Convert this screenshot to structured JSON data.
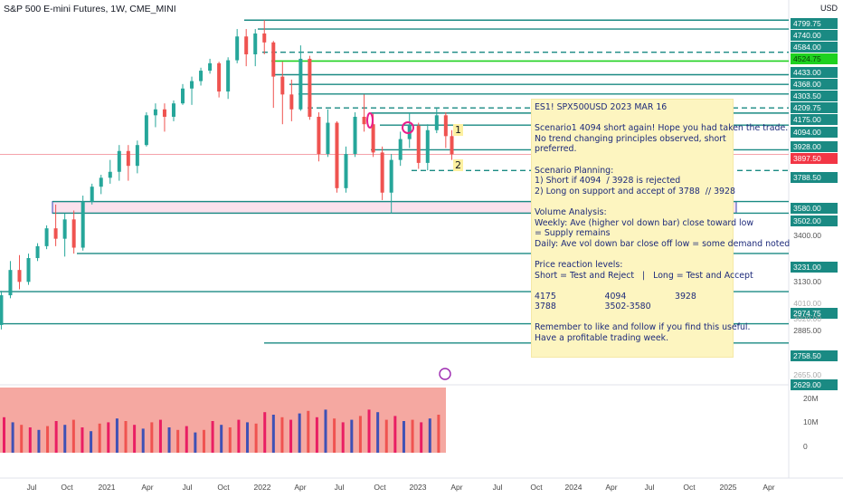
{
  "header": {
    "title": "S&P 500 E-mini Futures, 1W, CME_MINI"
  },
  "price_axis": {
    "currency": "USD",
    "ticks": [
      "3400.00",
      "3130.00",
      "2885.00"
    ],
    "partial_ticks": [
      "4010.00",
      "3020.00",
      "2655.00"
    ]
  },
  "price_tags": [
    {
      "label": "4799.75",
      "style": "teal"
    },
    {
      "label": "4740.00",
      "style": "teal"
    },
    {
      "label": "4584.00",
      "style": "teal"
    },
    {
      "label": "4524.75",
      "style": "green"
    },
    {
      "label": "4433.00",
      "style": "teal"
    },
    {
      "label": "4368.00",
      "style": "teal"
    },
    {
      "label": "4303.50",
      "style": "teal"
    },
    {
      "label": "4209.75",
      "style": "teal"
    },
    {
      "label": "4175.00",
      "style": "teal"
    },
    {
      "label": "4094.00",
      "style": "teal"
    },
    {
      "label": "3928.00",
      "style": "teal"
    },
    {
      "label": "3897.50",
      "style": "red"
    },
    {
      "label": "3788.50",
      "style": "teal"
    },
    {
      "label": "3580.00",
      "style": "teal"
    },
    {
      "label": "3502.00",
      "style": "teal"
    },
    {
      "label": "3231.00",
      "style": "teal"
    },
    {
      "label": "2974.75",
      "style": "teal"
    },
    {
      "label": "2758.50",
      "style": "teal"
    },
    {
      "label": "2629.00",
      "style": "teal"
    }
  ],
  "volume_axis": {
    "ticks": [
      "20M",
      "10M",
      "0"
    ]
  },
  "time_axis": [
    "Jul",
    "Oct",
    "2021",
    "Apr",
    "Jul",
    "Oct",
    "2022",
    "Apr",
    "Jul",
    "Oct",
    "2023",
    "Apr",
    "Jul",
    "Oct",
    "2024",
    "Apr",
    "Jul",
    "Oct",
    "2025",
    "Apr"
  ],
  "scenario_flags": [
    "1",
    "2"
  ],
  "note": {
    "lines": [
      "ES1! SPX500USD 2023 MAR 16",
      "",
      "Scenario1 4094 short again! Hope you had taken the trade.",
      "No trend changing principles observed, short",
      "preferred.",
      "",
      "Scenario Planning:",
      "1) Short if 4094  / 3928 is rejected",
      "2) Long on support and accept of 3788  // 3928",
      "",
      "Volume Analysis:",
      "Weekly: Ave (higher vol down bar) close toward low",
      "= Supply remains",
      "Daily: Ave vol down bar close off low = some demand noted",
      "",
      "Price reaction levels:",
      "Short = Test and Reject   |   Long = Test and Accept",
      "",
      "4175                  4094                  3928",
      "3788                  3502-3580",
      "",
      "Remember to like and follow if you find this useful.",
      "Have a profitable trading week."
    ]
  },
  "colors": {
    "teal": "#1a8a83",
    "green": "#1fd11f",
    "red": "#f23645",
    "up": "#26a69a",
    "down": "#ef5350",
    "note_text": "#1d2a7a"
  },
  "chart_data": {
    "type": "candlestick",
    "title": "S&P 500 E-mini Futures, 1W, CME_MINI",
    "ylim": [
      2500,
      4850
    ],
    "x_range": [
      "2020-05",
      "2025-05"
    ],
    "candles": [
      {
        "date": "2020-05-04",
        "o": 2750,
        "h": 2980,
        "l": 2720,
        "c": 2950
      },
      {
        "date": "2020-05-25",
        "o": 2950,
        "h": 3180,
        "l": 2930,
        "c": 3120
      },
      {
        "date": "2020-06-15",
        "o": 3120,
        "h": 3220,
        "l": 2990,
        "c": 3040
      },
      {
        "date": "2020-07-06",
        "o": 3040,
        "h": 3230,
        "l": 3020,
        "c": 3200
      },
      {
        "date": "2020-07-27",
        "o": 3200,
        "h": 3300,
        "l": 3180,
        "c": 3280
      },
      {
        "date": "2020-08-17",
        "o": 3280,
        "h": 3420,
        "l": 3260,
        "c": 3400
      },
      {
        "date": "2020-09-07",
        "o": 3400,
        "h": 3560,
        "l": 3280,
        "c": 3330
      },
      {
        "date": "2020-09-28",
        "o": 3330,
        "h": 3500,
        "l": 3210,
        "c": 3460
      },
      {
        "date": "2020-10-19",
        "o": 3460,
        "h": 3520,
        "l": 3230,
        "c": 3270
      },
      {
        "date": "2020-11-09",
        "o": 3270,
        "h": 3620,
        "l": 3250,
        "c": 3580
      },
      {
        "date": "2020-11-30",
        "o": 3580,
        "h": 3700,
        "l": 3560,
        "c": 3680
      },
      {
        "date": "2020-12-21",
        "o": 3680,
        "h": 3760,
        "l": 3630,
        "c": 3740
      },
      {
        "date": "2021-01-11",
        "o": 3740,
        "h": 3860,
        "l": 3700,
        "c": 3780
      },
      {
        "date": "2021-02-01",
        "o": 3780,
        "h": 3960,
        "l": 3720,
        "c": 3920
      },
      {
        "date": "2021-02-22",
        "o": 3920,
        "h": 3960,
        "l": 3720,
        "c": 3820
      },
      {
        "date": "2021-03-15",
        "o": 3820,
        "h": 3990,
        "l": 3770,
        "c": 3960
      },
      {
        "date": "2021-04-05",
        "o": 3960,
        "h": 4180,
        "l": 3950,
        "c": 4160
      },
      {
        "date": "2021-04-26",
        "o": 4160,
        "h": 4240,
        "l": 4080,
        "c": 4200
      },
      {
        "date": "2021-05-17",
        "o": 4200,
        "h": 4240,
        "l": 4050,
        "c": 4150
      },
      {
        "date": "2021-06-07",
        "o": 4150,
        "h": 4260,
        "l": 4120,
        "c": 4240
      },
      {
        "date": "2021-06-28",
        "o": 4240,
        "h": 4370,
        "l": 4230,
        "c": 4340
      },
      {
        "date": "2021-07-19",
        "o": 4340,
        "h": 4420,
        "l": 4230,
        "c": 4390
      },
      {
        "date": "2021-08-09",
        "o": 4390,
        "h": 4480,
        "l": 4360,
        "c": 4460
      },
      {
        "date": "2021-08-30",
        "o": 4460,
        "h": 4540,
        "l": 4440,
        "c": 4510
      },
      {
        "date": "2021-09-20",
        "o": 4510,
        "h": 4520,
        "l": 4280,
        "c": 4320
      },
      {
        "date": "2021-10-11",
        "o": 4320,
        "h": 4550,
        "l": 4270,
        "c": 4530
      },
      {
        "date": "2021-11-01",
        "o": 4530,
        "h": 4740,
        "l": 4510,
        "c": 4690
      },
      {
        "date": "2021-11-22",
        "o": 4690,
        "h": 4740,
        "l": 4490,
        "c": 4570
      },
      {
        "date": "2021-12-13",
        "o": 4570,
        "h": 4740,
        "l": 4490,
        "c": 4710
      },
      {
        "date": "2022-01-03",
        "o": 4710,
        "h": 4800,
        "l": 4570,
        "c": 4650
      },
      {
        "date": "2022-01-24",
        "o": 4650,
        "h": 4660,
        "l": 4210,
        "c": 4420
      },
      {
        "date": "2022-02-14",
        "o": 4420,
        "h": 4520,
        "l": 4100,
        "c": 4300
      },
      {
        "date": "2022-03-07",
        "o": 4300,
        "h": 4400,
        "l": 4120,
        "c": 4200
      },
      {
        "date": "2022-03-28",
        "o": 4200,
        "h": 4630,
        "l": 4190,
        "c": 4540
      },
      {
        "date": "2022-04-18",
        "o": 4540,
        "h": 4560,
        "l": 4130,
        "c": 4150
      },
      {
        "date": "2022-05-09",
        "o": 4150,
        "h": 4180,
        "l": 3850,
        "c": 3900
      },
      {
        "date": "2022-05-30",
        "o": 3900,
        "h": 4200,
        "l": 3880,
        "c": 4110
      },
      {
        "date": "2022-06-20",
        "o": 4110,
        "h": 4120,
        "l": 3640,
        "c": 3670
      },
      {
        "date": "2022-07-11",
        "o": 3670,
        "h": 3950,
        "l": 3640,
        "c": 3900
      },
      {
        "date": "2022-08-01",
        "o": 3900,
        "h": 4180,
        "l": 3880,
        "c": 4150
      },
      {
        "date": "2022-08-22",
        "o": 4150,
        "h": 4300,
        "l": 4050,
        "c": 4100
      },
      {
        "date": "2022-09-12",
        "o": 4100,
        "h": 4170,
        "l": 3880,
        "c": 3910
      },
      {
        "date": "2022-10-03",
        "o": 3910,
        "h": 3950,
        "l": 3590,
        "c": 3640
      },
      {
        "date": "2022-10-24",
        "o": 3640,
        "h": 3900,
        "l": 3500,
        "c": 3860
      },
      {
        "date": "2022-11-14",
        "o": 3860,
        "h": 4050,
        "l": 3820,
        "c": 4000
      },
      {
        "date": "2022-12-05",
        "o": 4000,
        "h": 4180,
        "l": 3940,
        "c": 4090
      },
      {
        "date": "2022-12-26",
        "o": 4090,
        "h": 4110,
        "l": 3800,
        "c": 3840
      },
      {
        "date": "2023-01-16",
        "o": 3840,
        "h": 4100,
        "l": 3790,
        "c": 4060
      },
      {
        "date": "2023-02-06",
        "o": 4060,
        "h": 4209,
        "l": 4040,
        "c": 4160
      },
      {
        "date": "2023-02-27",
        "o": 4160,
        "h": 4180,
        "l": 3940,
        "c": 4020
      },
      {
        "date": "2023-03-13",
        "o": 4020,
        "h": 4060,
        "l": 3860,
        "c": 3898
      }
    ],
    "levels": [
      4799.75,
      4740.0,
      4584.0,
      4524.75,
      4433.0,
      4368.0,
      4303.5,
      4209.75,
      4175.0,
      4094.0,
      3928.0,
      3897.5,
      3788.5,
      3580.0,
      3502.0,
      3231.0,
      2974.75,
      2758.5,
      2629.0
    ],
    "dashed_levels": [
      4584.0,
      4209.75,
      3788.5
    ],
    "zone": [
      3502.0,
      3580.0
    ],
    "volume": {
      "ylim": [
        0,
        25000000
      ],
      "values": [
        14000000,
        12000000,
        11000000,
        10000000,
        9000000,
        10500000,
        12500000,
        11000000,
        13000000,
        10000000,
        8500000,
        11500000,
        12000000,
        13500000,
        12500000,
        11000000,
        9500000,
        12000000,
        13000000,
        10000000,
        9000000,
        10500000,
        8000000,
        9000000,
        12500000,
        11000000,
        10000000,
        13000000,
        12000000,
        11500000,
        16000000,
        15000000,
        14000000,
        13000000,
        15500000,
        16500000,
        14000000,
        17000000,
        13500000,
        12000000,
        13000000,
        14500000,
        17000000,
        16000000,
        13000000,
        14500000,
        12500000,
        13000000,
        12000000,
        13500000,
        15000000
      ]
    }
  }
}
